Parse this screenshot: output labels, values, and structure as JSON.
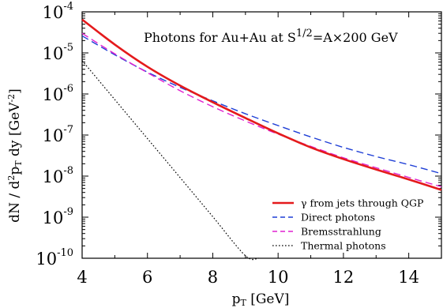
{
  "chart_data": {
    "type": "line",
    "title_main": "Photons for Au+Au at S",
    "title_exp": "1/2",
    "title_tail": "=A×200 GeV",
    "xlabel": "pT [GeV]",
    "ylabel": "dN / d2pT dy [GeV-2]",
    "xlim": [
      4,
      15
    ],
    "ylim": [
      1e-10,
      0.0001
    ],
    "yscale": "log",
    "x_ticks": [
      4,
      6,
      8,
      10,
      12,
      14
    ],
    "y_ticks": [
      {
        "value": 0.0001,
        "base": "10",
        "exp": "-4"
      },
      {
        "value": 1e-05,
        "base": "10",
        "exp": "-5"
      },
      {
        "value": 1e-06,
        "base": "10",
        "exp": "-6"
      },
      {
        "value": 1e-07,
        "base": "10",
        "exp": "-7"
      },
      {
        "value": 1e-08,
        "base": "10",
        "exp": "-8"
      },
      {
        "value": 1e-09,
        "base": "10",
        "exp": "-9"
      },
      {
        "value": 1e-10,
        "base": "10",
        "exp": "-10"
      }
    ],
    "grid": false,
    "legend_position": "bottom-right",
    "series": [
      {
        "name": "γ from jets through QGP",
        "color": "#e41a1c",
        "style": "solid",
        "x": [
          4,
          5,
          6,
          7,
          8,
          9,
          10,
          11,
          12,
          13,
          14,
          15
        ],
        "y": [
          6.5e-05,
          1.6e-05,
          4.6e-06,
          1.6e-06,
          6.3e-07,
          2.6e-07,
          1.1e-07,
          5e-08,
          2.6e-08,
          1.45e-08,
          8.3e-09,
          4.6e-09
        ]
      },
      {
        "name": "Direct photons",
        "color": "#1f3fd6",
        "style": "dashed",
        "x": [
          4,
          5,
          6,
          7,
          8,
          9,
          10,
          11,
          12,
          13,
          14,
          15
        ],
        "y": [
          2.6e-05,
          9e-06,
          3.4e-06,
          1.45e-06,
          6.8e-07,
          3.3e-07,
          1.7e-07,
          9e-08,
          5e-08,
          3e-08,
          1.9e-08,
          1.15e-08
        ]
      },
      {
        "name": "Bremsstrahlung",
        "color": "#e020d0",
        "style": "dashed",
        "x": [
          4,
          5,
          6,
          7,
          8,
          9,
          10,
          11,
          12,
          13,
          14,
          15
        ],
        "y": [
          3e-05,
          9.5e-06,
          3.3e-06,
          1.2e-06,
          4.9e-07,
          2.2e-07,
          1.05e-07,
          5.3e-08,
          2.8e-08,
          1.6e-08,
          9.3e-09,
          5.5e-09
        ]
      },
      {
        "name": "Thermal photons",
        "color": "#000000",
        "style": "dotted",
        "x": [
          4,
          5,
          6,
          7,
          8,
          9,
          9.4
        ],
        "y": [
          6.5e-06,
          7.3e-07,
          8.2e-08,
          9.2e-09,
          1.03e-09,
          1.15e-10,
          1e-10
        ]
      }
    ]
  }
}
